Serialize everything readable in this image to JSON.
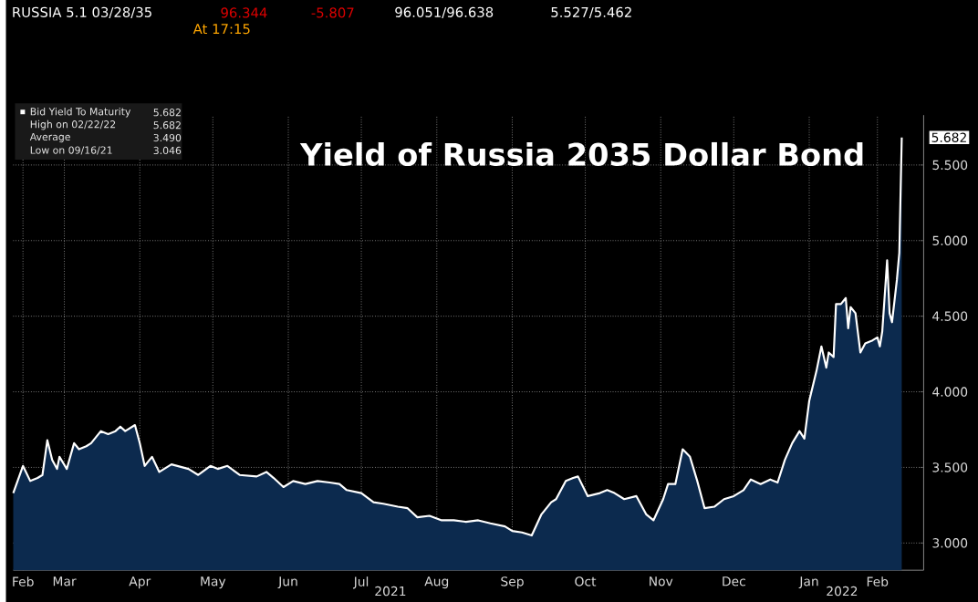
{
  "chart_data": {
    "type": "area",
    "title": "Yield of Russia 2035 Dollar Bond",
    "xlim": [
      "2021-02-22",
      "2022-03-03"
    ],
    "ylim": [
      2.82,
      5.83
    ],
    "xticks": [
      {
        "value": "2021-02-26",
        "label": "Feb"
      },
      {
        "value": "2021-03-15",
        "label": "Mar"
      },
      {
        "value": "2021-04-15",
        "label": "Apr"
      },
      {
        "value": "2021-05-15",
        "label": "May"
      },
      {
        "value": "2021-06-15",
        "label": "Jun"
      },
      {
        "value": "2021-07-15",
        "label": "Jul"
      },
      {
        "value": "2021-08-15",
        "label": "Aug"
      },
      {
        "value": "2021-09-15",
        "label": "Sep"
      },
      {
        "value": "2021-10-15",
        "label": "Oct"
      },
      {
        "value": "2021-11-15",
        "label": "Nov"
      },
      {
        "value": "2021-12-15",
        "label": "Dec"
      },
      {
        "value": "2022-01-15",
        "label": "Jan"
      },
      {
        "value": "2022-02-12",
        "label": "Feb"
      }
    ],
    "yticks": [
      {
        "value": 3,
        "label": "3.000"
      },
      {
        "value": 3.5,
        "label": "3.500"
      },
      {
        "value": 4,
        "label": "4.000"
      },
      {
        "value": 4.5,
        "label": "4.500"
      },
      {
        "value": 5,
        "label": "5.000"
      },
      {
        "value": 5.5,
        "label": "5.500"
      }
    ],
    "grid": true,
    "legend": "top left",
    "x": [
      "2021-02-22",
      "2021-02-26",
      "2021-03-01",
      "2021-03-04",
      "2021-03-06",
      "2021-03-08",
      "2021-03-10",
      "2021-03-12",
      "2021-03-13",
      "2021-03-16",
      "2021-03-19",
      "2021-03-21",
      "2021-03-24",
      "2021-03-26",
      "2021-03-30",
      "2021-04-02",
      "2021-04-05",
      "2021-04-07",
      "2021-04-09",
      "2021-04-13",
      "2021-04-15",
      "2021-04-17",
      "2021-04-20",
      "2021-04-23",
      "2021-04-28",
      "2021-05-05",
      "2021-05-09",
      "2021-05-14",
      "2021-05-17",
      "2021-05-21",
      "2021-05-26",
      "2021-06-02",
      "2021-06-06",
      "2021-06-09",
      "2021-06-13",
      "2021-06-17",
      "2021-06-22",
      "2021-06-27",
      "2021-07-02",
      "2021-07-06",
      "2021-07-09",
      "2021-07-15",
      "2021-07-20",
      "2021-07-24",
      "2021-07-30",
      "2021-08-03",
      "2021-08-07",
      "2021-08-12",
      "2021-08-17",
      "2021-08-22",
      "2021-08-27",
      "2021-09-01",
      "2021-09-06",
      "2021-09-12",
      "2021-09-15",
      "2021-09-19",
      "2021-09-23",
      "2021-09-27",
      "2021-10-01",
      "2021-10-03",
      "2021-10-07",
      "2021-10-10",
      "2021-10-12",
      "2021-10-16",
      "2021-10-21",
      "2021-10-24",
      "2021-10-27",
      "2021-10-31",
      "2021-11-05",
      "2021-11-09",
      "2021-11-12",
      "2021-11-16",
      "2021-11-18",
      "2021-11-21",
      "2021-11-24",
      "2021-11-27",
      "2021-11-30",
      "2021-12-03",
      "2021-12-07",
      "2021-12-11",
      "2021-12-15",
      "2021-12-19",
      "2021-12-22",
      "2021-12-26",
      "2021-12-30",
      "2022-01-02",
      "2022-01-05",
      "2022-01-08",
      "2022-01-11",
      "2022-01-13",
      "2022-01-15",
      "2022-01-18",
      "2022-01-20",
      "2022-01-22",
      "2022-01-23",
      "2022-01-25",
      "2022-01-26",
      "2022-01-28",
      "2022-01-30",
      "2022-01-31",
      "2022-02-01",
      "2022-02-03",
      "2022-02-05",
      "2022-02-07",
      "2022-02-10",
      "2022-02-12",
      "2022-02-13",
      "2022-02-14",
      "2022-02-16",
      "2022-02-17",
      "2022-02-18",
      "2022-02-20",
      "2022-02-21",
      "2022-02-22"
    ],
    "series": [
      {
        "name": "Bid Yield To Maturity",
        "color": "#ffffff",
        "values": [
          3.33,
          3.51,
          3.41,
          3.43,
          3.45,
          3.68,
          3.55,
          3.49,
          3.57,
          3.49,
          3.66,
          3.62,
          3.64,
          3.66,
          3.74,
          3.72,
          3.74,
          3.77,
          3.74,
          3.78,
          3.66,
          3.51,
          3.57,
          3.47,
          3.52,
          3.49,
          3.45,
          3.51,
          3.49,
          3.51,
          3.45,
          3.44,
          3.47,
          3.43,
          3.37,
          3.41,
          3.39,
          3.41,
          3.4,
          3.39,
          3.35,
          3.33,
          3.27,
          3.26,
          3.24,
          3.23,
          3.17,
          3.18,
          3.15,
          3.15,
          3.14,
          3.15,
          3.13,
          3.11,
          3.08,
          3.07,
          3.05,
          3.19,
          3.27,
          3.29,
          3.41,
          3.43,
          3.44,
          3.31,
          3.33,
          3.35,
          3.33,
          3.29,
          3.31,
          3.19,
          3.15,
          3.29,
          3.39,
          3.39,
          3.62,
          3.57,
          3.41,
          3.23,
          3.24,
          3.29,
          3.31,
          3.35,
          3.42,
          3.39,
          3.42,
          3.4,
          3.55,
          3.66,
          3.74,
          3.69,
          3.94,
          4.14,
          4.3,
          4.16,
          4.26,
          4.23,
          4.58,
          4.58,
          4.62,
          4.42,
          4.56,
          4.52,
          4.26,
          4.32,
          4.34,
          4.36,
          4.3,
          4.4,
          4.87,
          4.52,
          4.46,
          4.74,
          4.92,
          5.682
        ]
      }
    ],
    "annotations": [
      "RUSSIA 5.1 03/28/35",
      "96.344",
      "-5.807",
      "96.051/96.638",
      "5.527/5.462",
      "At 17:15",
      "5.682",
      "High on 02/22/22",
      "5.682",
      "Average",
      "3.490",
      "Low on 09/16/21",
      "3.046",
      "2021",
      "2022",
      {
        "text": "5.682",
        "x": "2022-02-22",
        "y": 5.682
      }
    ]
  }
}
